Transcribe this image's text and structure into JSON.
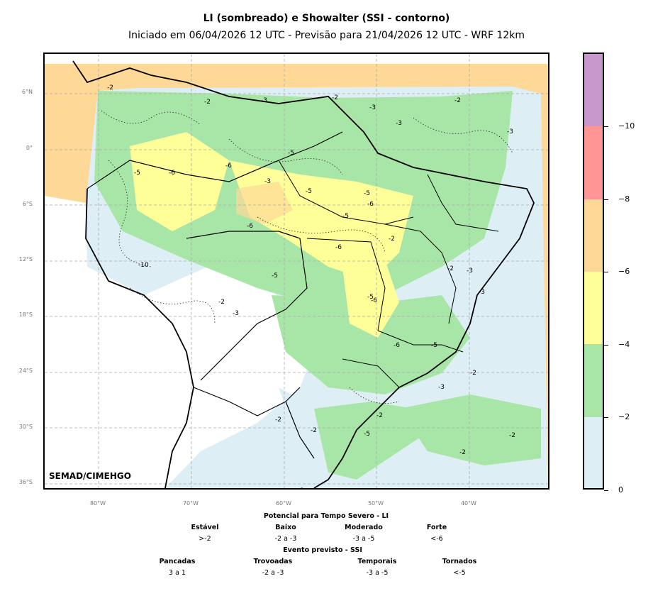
{
  "title": "LI (sombreado) e Showalter (SSI - contorno)",
  "subtitle": "Iniciado em 06/04/2026 12 UTC - Previsão para 21/04/2026 12 UTC - WRF 12km",
  "credit": "SEMAD/CIMEHGO",
  "lat_labels": [
    "6°N",
    "0°",
    "6°S",
    "12°S",
    "18°S",
    "24°S",
    "30°S",
    "36°S"
  ],
  "lon_labels": [
    "80°W",
    "70°W",
    "60°W",
    "50°W",
    "40°W"
  ],
  "colorbar": {
    "ticks": [
      "0",
      "−2",
      "−4",
      "−6",
      "−8",
      "−10"
    ],
    "colors": [
      "#ddeef5",
      "#a8e6a8",
      "#ffff99",
      "#fdd896",
      "#ff9595",
      "#c898cc"
    ]
  },
  "contour_labels": [
    "-2",
    "-3",
    "-5",
    "-6",
    "-10"
  ],
  "legend": {
    "li_title": "Potencial para Tempo Severo - LI",
    "li_classes": [
      {
        "name": "Estável",
        "value": ">-2"
      },
      {
        "name": "Baixo",
        "value": "-2 a -3"
      },
      {
        "name": "Moderado",
        "value": "-3 a -5"
      },
      {
        "name": "Forte",
        "value": "<-6"
      }
    ],
    "ssi_title": "Evento previsto - SSI",
    "ssi_classes": [
      {
        "name": "Pancadas",
        "value": "3 a 1"
      },
      {
        "name": "Trovoadas",
        "value": "-2 a -3"
      },
      {
        "name": "Temporais",
        "value": "-3 a -5"
      },
      {
        "name": "Tornados",
        "value": "<-5"
      }
    ]
  }
}
